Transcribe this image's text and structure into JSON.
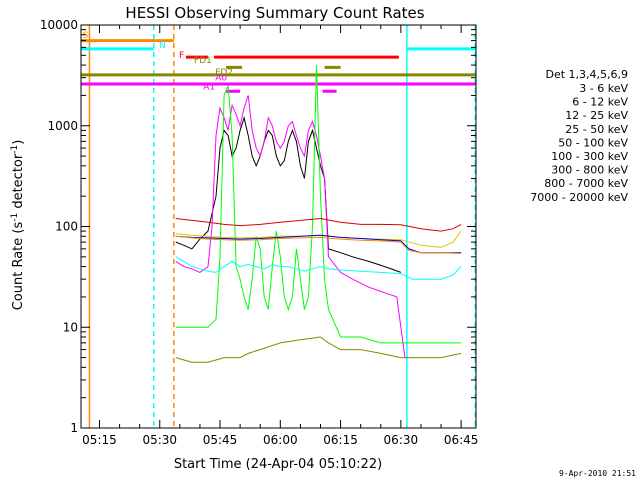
{
  "chart_data": {
    "type": "line",
    "title": "HESSI Observing Summary Count Rates",
    "xlabel": "Start Time (24-Apr-04 05:10:22)",
    "ylabel_main": "Count Rate (s",
    "ylabel_sup1": "-1",
    "ylabel_mid": " detector",
    "ylabel_sup2": "-1",
    "ylabel_end": ")",
    "footer": "9-Apr-2010 21:51",
    "x_range_min": [
      10.4,
      48.7
    ],
    "y_log": true,
    "y_range": [
      1,
      10000
    ],
    "x_ticks": [
      {
        "min": 15,
        "label": "05:15"
      },
      {
        "min": 30,
        "label": "05:30"
      },
      {
        "min": 45,
        "label": "05:45"
      },
      {
        "min": 60,
        "label": "06:00"
      },
      {
        "min": 75,
        "label": "06:15"
      },
      {
        "min": 90,
        "label": "06:30"
      },
      {
        "min": 105,
        "label": "06:45"
      }
    ],
    "y_ticks": [
      {
        "v": 1,
        "label": "1"
      },
      {
        "v": 10,
        "label": "10"
      },
      {
        "v": 100,
        "label": "100"
      },
      {
        "v": 1000,
        "label": "1000"
      },
      {
        "v": 10000,
        "label": "10000"
      }
    ],
    "legend": {
      "header": "Det 1,3,4,5,6,9",
      "entries": [
        {
          "label": "3 - 6 keV",
          "color": "#000000"
        },
        {
          "label": "6 - 12 keV",
          "color": "#ff00ff"
        },
        {
          "label": "12 - 25 keV",
          "color": "#00ff00"
        },
        {
          "label": "25 - 50 keV",
          "color": "#00ffff"
        },
        {
          "label": "50 - 100 keV",
          "color": "#cccc00"
        },
        {
          "label": "100 - 300 keV",
          "color": "#dd0000"
        },
        {
          "label": "300 - 800 keV",
          "color": "#0000dd"
        },
        {
          "label": "800 - 7000 keV",
          "color": "#ff8800"
        },
        {
          "label": "7000 - 20000 keV",
          "color": "#888800"
        }
      ]
    },
    "flags": [
      {
        "label": "S",
        "color": "#ff8800"
      },
      {
        "label": "N",
        "color": "#00ffff"
      },
      {
        "label": "F",
        "color": "#ff0000"
      },
      {
        "label": "FD1",
        "color": "#888800"
      },
      {
        "label": "FD2",
        "color": "#888800"
      },
      {
        "label": "A1",
        "color": "#ff00ff"
      },
      {
        "label": "A0",
        "color": "#ff00ff"
      }
    ],
    "series": [
      {
        "key": "e3_6",
        "color": "#000000",
        "points": [
          [
            34,
            70
          ],
          [
            36,
            65
          ],
          [
            38,
            60
          ],
          [
            40,
            75
          ],
          [
            42,
            90
          ],
          [
            44,
            200
          ],
          [
            45,
            600
          ],
          [
            46,
            900
          ],
          [
            47,
            800
          ],
          [
            48,
            500
          ],
          [
            49,
            600
          ],
          [
            50,
            900
          ],
          [
            51,
            1200
          ],
          [
            52,
            800
          ],
          [
            53,
            500
          ],
          [
            54,
            400
          ],
          [
            55,
            500
          ],
          [
            56,
            700
          ],
          [
            57,
            900
          ],
          [
            58,
            800
          ],
          [
            59,
            500
          ],
          [
            60,
            400
          ],
          [
            61,
            450
          ],
          [
            62,
            700
          ],
          [
            63,
            900
          ],
          [
            64,
            700
          ],
          [
            65,
            400
          ],
          [
            66,
            300
          ],
          [
            67,
            700
          ],
          [
            68,
            900
          ],
          [
            69,
            600
          ],
          [
            70,
            400
          ],
          [
            71,
            300
          ],
          [
            72,
            60
          ],
          [
            75,
            55
          ],
          [
            78,
            50
          ],
          [
            82,
            45
          ],
          [
            86,
            40
          ],
          [
            90,
            35
          ]
        ]
      },
      {
        "key": "e6_12",
        "color": "#ff00ff",
        "points": [
          [
            34,
            45
          ],
          [
            36,
            40
          ],
          [
            38,
            38
          ],
          [
            40,
            35
          ],
          [
            42,
            40
          ],
          [
            43,
            100
          ],
          [
            44,
            800
          ],
          [
            45,
            1500
          ],
          [
            46,
            1200
          ],
          [
            47,
            900
          ],
          [
            48,
            1600
          ],
          [
            49,
            1300
          ],
          [
            50,
            1000
          ],
          [
            51,
            1500
          ],
          [
            52,
            2000
          ],
          [
            53,
            900
          ],
          [
            54,
            600
          ],
          [
            55,
            500
          ],
          [
            56,
            700
          ],
          [
            57,
            1200
          ],
          [
            58,
            1000
          ],
          [
            59,
            700
          ],
          [
            60,
            600
          ],
          [
            61,
            700
          ],
          [
            62,
            1000
          ],
          [
            63,
            1100
          ],
          [
            64,
            800
          ],
          [
            65,
            600
          ],
          [
            66,
            500
          ],
          [
            67,
            900
          ],
          [
            68,
            1100
          ],
          [
            69,
            800
          ],
          [
            70,
            500
          ],
          [
            71,
            300
          ],
          [
            72,
            50
          ],
          [
            75,
            35
          ],
          [
            78,
            30
          ],
          [
            82,
            25
          ],
          [
            86,
            22
          ],
          [
            89,
            20
          ],
          [
            90,
            10
          ],
          [
            91,
            5
          ],
          [
            92,
            5
          ]
        ]
      },
      {
        "key": "e12_25",
        "color": "#00ff00",
        "points": [
          [
            34,
            10
          ],
          [
            38,
            10
          ],
          [
            42,
            10
          ],
          [
            44,
            12
          ],
          [
            45,
            50
          ],
          [
            46,
            2000
          ],
          [
            47,
            2500
          ],
          [
            48,
            800
          ],
          [
            49,
            40
          ],
          [
            50,
            30
          ],
          [
            51,
            20
          ],
          [
            52,
            15
          ],
          [
            53,
            30
          ],
          [
            54,
            80
          ],
          [
            55,
            60
          ],
          [
            56,
            20
          ],
          [
            57,
            15
          ],
          [
            58,
            40
          ],
          [
            59,
            90
          ],
          [
            60,
            50
          ],
          [
            61,
            20
          ],
          [
            62,
            15
          ],
          [
            63,
            20
          ],
          [
            64,
            60
          ],
          [
            65,
            30
          ],
          [
            66,
            15
          ],
          [
            67,
            20
          ],
          [
            68,
            100
          ],
          [
            69,
            4000
          ],
          [
            70,
            200
          ],
          [
            71,
            30
          ],
          [
            72,
            15
          ],
          [
            75,
            8
          ],
          [
            80,
            8
          ],
          [
            85,
            7
          ],
          [
            90,
            7
          ],
          [
            95,
            7
          ],
          [
            100,
            7
          ],
          [
            105,
            7
          ]
        ]
      },
      {
        "key": "e25_50",
        "color": "#00ffff",
        "points": [
          [
            34,
            50
          ],
          [
            36,
            45
          ],
          [
            38,
            40
          ],
          [
            40,
            38
          ],
          [
            42,
            36
          ],
          [
            44,
            35
          ],
          [
            46,
            40
          ],
          [
            48,
            45
          ],
          [
            50,
            40
          ],
          [
            52,
            42
          ],
          [
            54,
            40
          ],
          [
            56,
            38
          ],
          [
            58,
            42
          ],
          [
            60,
            40
          ],
          [
            62,
            40
          ],
          [
            64,
            38
          ],
          [
            66,
            36
          ],
          [
            68,
            38
          ],
          [
            70,
            40
          ],
          [
            72,
            38
          ],
          [
            75,
            37
          ],
          [
            80,
            36
          ],
          [
            85,
            35
          ],
          [
            90,
            34
          ],
          [
            93,
            30
          ],
          [
            96,
            30
          ],
          [
            100,
            30
          ],
          [
            103,
            33
          ],
          [
            105,
            40
          ]
        ]
      },
      {
        "key": "e50_100",
        "color": "#cccc00",
        "points": [
          [
            34,
            85
          ],
          [
            38,
            82
          ],
          [
            42,
            80
          ],
          [
            46,
            78
          ],
          [
            50,
            77
          ],
          [
            55,
            78
          ],
          [
            60,
            80
          ],
          [
            65,
            80
          ],
          [
            70,
            82
          ],
          [
            75,
            78
          ],
          [
            80,
            76
          ],
          [
            85,
            75
          ],
          [
            90,
            74
          ],
          [
            95,
            65
          ],
          [
            100,
            62
          ],
          [
            103,
            70
          ],
          [
            105,
            90
          ]
        ]
      },
      {
        "key": "e100_300",
        "color": "#dd0000",
        "points": [
          [
            34,
            120
          ],
          [
            38,
            115
          ],
          [
            42,
            110
          ],
          [
            46,
            105
          ],
          [
            50,
            102
          ],
          [
            55,
            105
          ],
          [
            60,
            110
          ],
          [
            65,
            115
          ],
          [
            70,
            120
          ],
          [
            75,
            110
          ],
          [
            80,
            105
          ],
          [
            85,
            105
          ],
          [
            90,
            104
          ],
          [
            95,
            95
          ],
          [
            100,
            90
          ],
          [
            103,
            95
          ],
          [
            105,
            105
          ]
        ]
      },
      {
        "key": "e300_800",
        "color": "#0000dd",
        "points": [
          [
            34,
            80
          ],
          [
            38,
            78
          ],
          [
            42,
            77
          ],
          [
            46,
            76
          ],
          [
            50,
            75
          ],
          [
            55,
            76
          ],
          [
            60,
            78
          ],
          [
            65,
            80
          ],
          [
            70,
            82
          ],
          [
            75,
            78
          ],
          [
            80,
            76
          ],
          [
            85,
            74
          ],
          [
            90,
            72
          ],
          [
            92,
            60
          ],
          [
            95,
            55
          ],
          [
            100,
            55
          ],
          [
            105,
            55
          ]
        ]
      },
      {
        "key": "e800_7000",
        "color": "#ff8800",
        "points": [
          [
            34,
            80
          ],
          [
            38,
            77
          ],
          [
            42,
            75
          ],
          [
            46,
            74
          ],
          [
            50,
            73
          ],
          [
            55,
            74
          ],
          [
            60,
            76
          ],
          [
            65,
            77
          ],
          [
            70,
            78
          ],
          [
            75,
            75
          ],
          [
            80,
            73
          ],
          [
            85,
            72
          ],
          [
            90,
            70
          ],
          [
            92,
            58
          ],
          [
            95,
            55
          ],
          [
            100,
            55
          ],
          [
            105,
            54
          ]
        ]
      },
      {
        "key": "e7000_20000",
        "color": "#888800",
        "points": [
          [
            34,
            5
          ],
          [
            38,
            4.5
          ],
          [
            42,
            4.5
          ],
          [
            46,
            5
          ],
          [
            50,
            5
          ],
          [
            52,
            5.5
          ],
          [
            55,
            6
          ],
          [
            60,
            7
          ],
          [
            65,
            7.5
          ],
          [
            70,
            8
          ],
          [
            72,
            7
          ],
          [
            75,
            6
          ],
          [
            80,
            6
          ],
          [
            85,
            5.5
          ],
          [
            90,
            5
          ],
          [
            95,
            5
          ],
          [
            100,
            5
          ],
          [
            105,
            5.5
          ]
        ]
      }
    ],
    "vlines": [
      {
        "min": 12.5,
        "color": "#ff8800",
        "dash": false
      },
      {
        "min": 28.5,
        "color": "#00ffff",
        "dash": true
      },
      {
        "min": 33.5,
        "color": "#ff8800",
        "dash": true
      },
      {
        "min": 91.5,
        "color": "#00ffff",
        "dash": false
      },
      {
        "min": 108.5,
        "color": "#00ffff",
        "dash": true
      }
    ],
    "hbars": [
      {
        "y": 7000,
        "x1": 10.4,
        "x2": 33.5,
        "color": "#ff8800"
      },
      {
        "y": 5800,
        "x1": 10.4,
        "x2": 28.5,
        "color": "#00ffff"
      },
      {
        "y": 5800,
        "x1": 91.5,
        "x2": 108.7,
        "color": "#00ffff"
      },
      {
        "y": 4800,
        "x1": 36.5,
        "x2": 42.0,
        "color": "#ff0000"
      },
      {
        "y": 4800,
        "x1": 43.5,
        "x2": 89.5,
        "color": "#ff0000"
      },
      {
        "y": 3800,
        "x1": 46.5,
        "x2": 50.5,
        "color": "#888800"
      },
      {
        "y": 3800,
        "x1": 71.0,
        "x2": 75.0,
        "color": "#888800"
      },
      {
        "y": 3200,
        "x1": 10.4,
        "x2": 108.7,
        "color": "#888800"
      },
      {
        "y": 2600,
        "x1": 10.4,
        "x2": 108.7,
        "color": "#ff00ff"
      },
      {
        "y": 2200,
        "x1": 46.5,
        "x2": 50.0,
        "color": "#ff00ff"
      },
      {
        "y": 2200,
        "x1": 70.5,
        "x2": 74.0,
        "color": "#ff00ff"
      }
    ]
  }
}
